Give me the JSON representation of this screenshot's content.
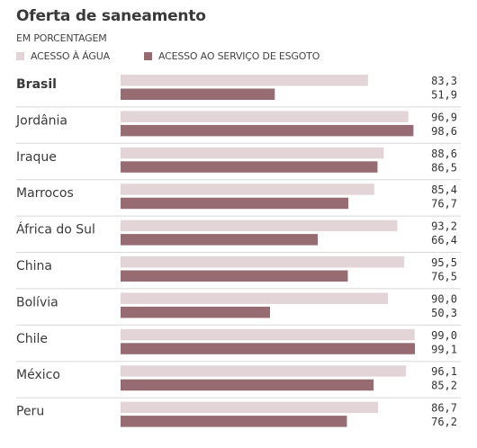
{
  "chart_data": {
    "type": "bar",
    "orientation": "horizontal",
    "title": "Oferta de saneamento",
    "subtitle": "EM PORCENTAGEM",
    "categories": [
      "Brasil",
      "Jordânia",
      "Iraque",
      "Marrocos",
      "África do Sul",
      "China",
      "Bolívia",
      "Chile",
      "México",
      "Peru"
    ],
    "series": [
      {
        "name": "ACESSO À ÁGUA",
        "color": "#e3d5d7",
        "values": [
          83.3,
          96.9,
          88.6,
          85.4,
          93.2,
          95.5,
          90.0,
          99.0,
          96.1,
          86.7
        ],
        "labels": [
          "83,3",
          "96,9",
          "88,6",
          "85,4",
          "93,2",
          "95,5",
          "90,0",
          "99,0",
          "96,1",
          "86,7"
        ]
      },
      {
        "name": "ACESSO AO SERVIÇO DE ESGOTO",
        "color": "#976b72",
        "values": [
          51.9,
          98.6,
          86.5,
          76.7,
          66.4,
          76.5,
          50.3,
          99.1,
          85.2,
          76.2
        ],
        "labels": [
          "51,9",
          "98,6",
          "86,5",
          "76,7",
          "66,4",
          "76,5",
          "50,3",
          "99,1",
          "85,2",
          "76,2"
        ]
      }
    ],
    "xlim": [
      0,
      100
    ],
    "grid": false,
    "legend_position": "top-left"
  }
}
